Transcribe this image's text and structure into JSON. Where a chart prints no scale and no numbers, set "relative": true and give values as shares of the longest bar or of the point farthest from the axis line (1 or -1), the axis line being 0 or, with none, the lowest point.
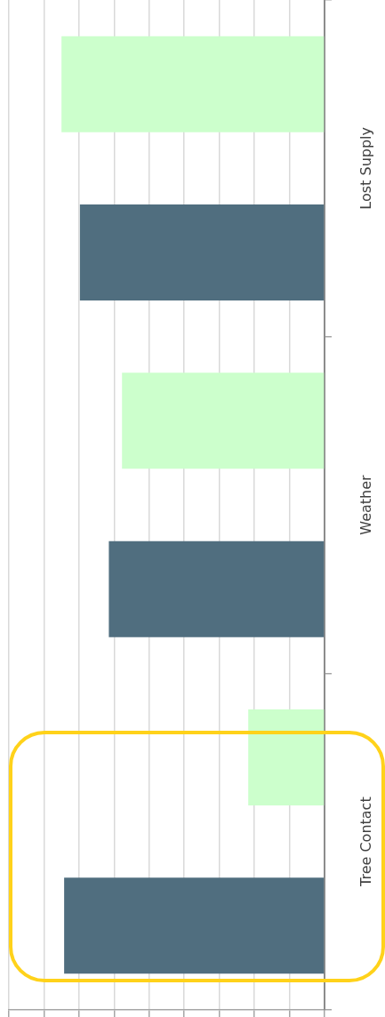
{
  "chart_data": {
    "type": "bar",
    "orientation": "horizontal",
    "relative": true,
    "grid": "x",
    "categories": [
      "Lost Supply",
      "Weather",
      "Tree Contact"
    ],
    "series": [
      {
        "color": "#ccffcc",
        "values": [
          1,
          0.77,
          0.29
        ]
      },
      {
        "color": "#506e7f",
        "values": [
          0.93,
          0.82,
          0.99
        ]
      }
    ]
  }
}
